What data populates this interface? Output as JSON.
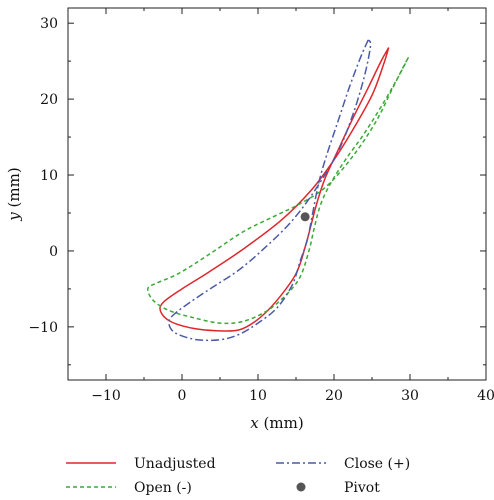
{
  "chart_data": {
    "type": "line",
    "title": "",
    "xlabel": {
      "var": "x",
      "unit": " (mm)"
    },
    "ylabel": {
      "var": "y",
      "unit": " (mm)"
    },
    "xlim": [
      -15,
      40
    ],
    "ylim": [
      -17,
      32
    ],
    "xticks": [
      -10,
      0,
      10,
      20,
      30,
      40
    ],
    "yticks": [
      -10,
      0,
      10,
      20,
      30
    ],
    "grid": false,
    "legend_position": "bottom",
    "series": [
      {
        "name": "Unadjusted",
        "style": "solid",
        "color": "#e0262b",
        "x": [
          27.2,
          26.2,
          24.5,
          22.5,
          20.5,
          18.8,
          17.8,
          17.0,
          16.2,
          15.0,
          12.5,
          10.0,
          7.5,
          4.5,
          1.5,
          -1.5,
          -2.8,
          -2.5,
          0.0,
          3.5,
          8.0,
          13.0,
          17.0,
          20.0,
          22.5,
          25.0,
          26.5,
          27.2
        ],
        "y": [
          26.8,
          25.0,
          21.5,
          17.5,
          13.2,
          9.5,
          6.5,
          3.5,
          0.5,
          -3.0,
          -6.5,
          -9.0,
          -10.4,
          -10.5,
          -10.2,
          -9.3,
          -8.0,
          -6.8,
          -5.0,
          -2.8,
          0.2,
          4.0,
          8.0,
          12.0,
          16.0,
          20.5,
          24.5,
          26.8
        ]
      },
      {
        "name": "Open (-)",
        "style": "dashed",
        "color": "#3aaa35",
        "x": [
          29.8,
          28.5,
          26.5,
          24.0,
          21.5,
          19.5,
          18.2,
          17.4,
          16.7,
          15.5,
          13.5,
          11.0,
          8.0,
          5.0,
          1.5,
          -1.8,
          -3.8,
          -4.5,
          -3.5,
          -0.5,
          3.5,
          8.0,
          12.0,
          15.5,
          19.0,
          22.5,
          25.5,
          27.5,
          29.0,
          29.8
        ],
        "y": [
          25.5,
          23.0,
          19.5,
          15.5,
          12.0,
          8.8,
          6.0,
          3.0,
          0.0,
          -3.5,
          -6.0,
          -8.0,
          -9.3,
          -9.5,
          -8.8,
          -7.8,
          -6.5,
          -5.0,
          -4.3,
          -3.0,
          -0.5,
          2.5,
          4.5,
          6.2,
          8.5,
          12.5,
          17.0,
          21.0,
          24.0,
          25.5
        ]
      },
      {
        "name": "Close (+)",
        "style": "dashdot",
        "color": "#4a5aa8",
        "x": [
          24.5,
          23.5,
          22.0,
          20.5,
          19.0,
          18.0,
          17.2,
          16.5,
          15.5,
          14.5,
          12.5,
          10.0,
          7.5,
          5.0,
          2.0,
          -0.5,
          -1.5,
          -1.7,
          -1.0,
          1.0,
          4.0,
          7.5,
          11.0,
          14.5,
          17.5,
          20.5,
          22.5,
          24.0,
          24.8,
          24.5
        ],
        "y": [
          27.8,
          25.5,
          21.5,
          17.0,
          12.5,
          9.0,
          5.0,
          1.5,
          -1.5,
          -4.5,
          -7.5,
          -9.5,
          -11.0,
          -11.7,
          -11.7,
          -11.0,
          -10.2,
          -9.2,
          -8.3,
          -6.8,
          -4.8,
          -2.5,
          0.5,
          4.0,
          8.0,
          13.0,
          18.0,
          23.0,
          27.0,
          27.8
        ]
      }
    ],
    "points": [
      {
        "name": "Pivot",
        "x": 16.2,
        "y": 4.5,
        "color": "#555555"
      }
    ]
  }
}
